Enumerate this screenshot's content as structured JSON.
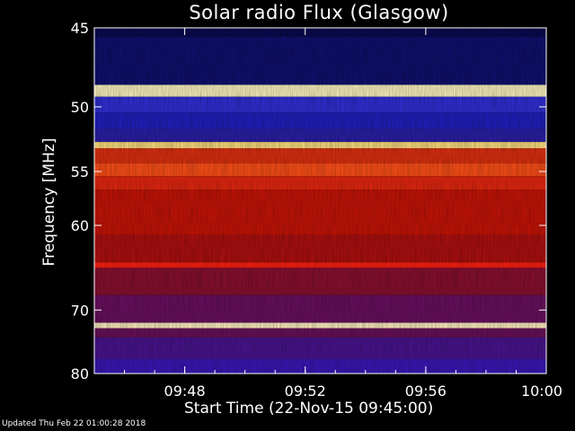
{
  "chart_data": {
    "type": "heatmap",
    "title": "Solar radio Flux (Glasgow)",
    "xlabel": "Start Time (22-Nov-15 09:45:00)",
    "ylabel": "Frequency [MHz]",
    "x_range_minutes": [
      0,
      15
    ],
    "x_ticks": [
      {
        "minute": 3,
        "label": "09:48"
      },
      {
        "minute": 7,
        "label": "09:52"
      },
      {
        "minute": 11,
        "label": "09:56"
      },
      {
        "minute": 15,
        "label": "10:00"
      }
    ],
    "y_range_mhz": [
      45,
      80
    ],
    "y_scale": "reciprocal",
    "y_ticks": [
      45,
      50,
      55,
      60,
      70,
      80
    ],
    "bands": [
      {
        "from": 45.0,
        "to": 45.5,
        "color": "#0a0a50"
      },
      {
        "from": 45.5,
        "to": 48.5,
        "color": "#101070"
      },
      {
        "from": 48.5,
        "to": 49.3,
        "color": "#fff6c0"
      },
      {
        "from": 49.3,
        "to": 50.4,
        "color": "#3030d8"
      },
      {
        "from": 50.4,
        "to": 51.6,
        "color": "#2020c0"
      },
      {
        "from": 51.6,
        "to": 52.6,
        "color": "#2a20a8"
      },
      {
        "from": 52.6,
        "to": 53.1,
        "color": "#ffe080"
      },
      {
        "from": 53.1,
        "to": 54.3,
        "color": "#e03010"
      },
      {
        "from": 54.3,
        "to": 55.4,
        "color": "#ff5018"
      },
      {
        "from": 55.4,
        "to": 56.6,
        "color": "#e82810"
      },
      {
        "from": 56.6,
        "to": 61.0,
        "color": "#c81408"
      },
      {
        "from": 61.0,
        "to": 64.0,
        "color": "#b01010"
      },
      {
        "from": 64.0,
        "to": 64.6,
        "color": "#ff2010"
      },
      {
        "from": 64.6,
        "to": 68.0,
        "color": "#8a1030"
      },
      {
        "from": 68.0,
        "to": 71.8,
        "color": "#6a1060"
      },
      {
        "from": 71.8,
        "to": 72.6,
        "color": "#fff0c0"
      },
      {
        "from": 72.6,
        "to": 74.0,
        "color": "#6a1058"
      },
      {
        "from": 74.0,
        "to": 77.5,
        "color": "#4a1490"
      },
      {
        "from": 77.5,
        "to": 80.0,
        "color": "#3a18b8"
      }
    ],
    "grid": false,
    "legend": "none"
  },
  "footer": "Updated Thu Feb 22 01:00:28 2018"
}
